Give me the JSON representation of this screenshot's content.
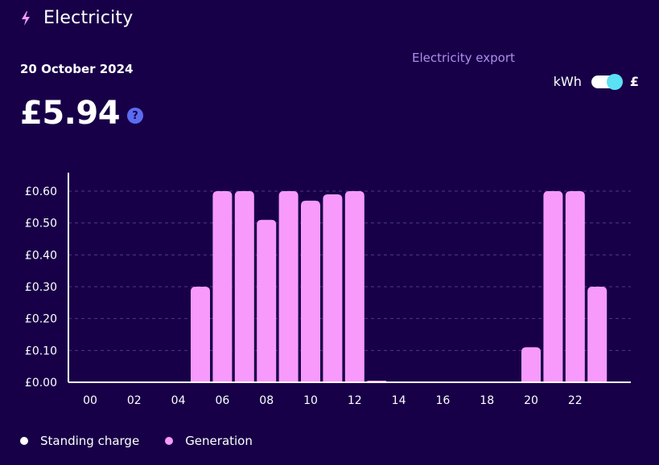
{
  "header": {
    "title": "Electricity",
    "icon": "lightning-bolt-icon"
  },
  "summary": {
    "date": "20 October 2024",
    "amount": "£5.94",
    "help_label": "?"
  },
  "export_label": "Electricity export",
  "toggle": {
    "left_label": "kWh",
    "right_label": "£",
    "selected": "£"
  },
  "legend": [
    {
      "label": "Standing charge",
      "color": "#ffffff"
    },
    {
      "label": "Generation",
      "color": "#f79afc"
    }
  ],
  "colors": {
    "background": "#180048",
    "bar": "#f79afc",
    "accent": "#5ce0f5",
    "help": "#5b6cf2",
    "subtle": "#b08cf0"
  },
  "chart_data": {
    "type": "bar",
    "categories": [
      "00",
      "01",
      "02",
      "03",
      "04",
      "05",
      "06",
      "07",
      "08",
      "09",
      "10",
      "11",
      "12",
      "13",
      "14",
      "15",
      "16",
      "17",
      "18",
      "19",
      "20",
      "21",
      "22",
      "23"
    ],
    "x_tick_labels": [
      "00",
      "02",
      "04",
      "06",
      "08",
      "10",
      "12",
      "14",
      "16",
      "18",
      "20",
      "22"
    ],
    "y_tick_labels": [
      "£0.00",
      "£0.10",
      "£0.20",
      "£0.30",
      "£0.40",
      "£0.50",
      "£0.60"
    ],
    "ylim": [
      0,
      0.6
    ],
    "grid": true,
    "series": [
      {
        "name": "Generation",
        "values": [
          0,
          0,
          0,
          0,
          0,
          0.3,
          0.6,
          0.6,
          0.51,
          0.6,
          0.57,
          0.59,
          0.6,
          0.005,
          0,
          0,
          0,
          0,
          0,
          0,
          0.11,
          0.6,
          0.6,
          0.3
        ]
      }
    ]
  }
}
